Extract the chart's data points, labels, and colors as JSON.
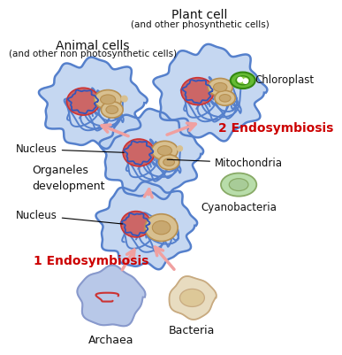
{
  "bg_color": "#ffffff",
  "cell_blue_fill": "#c0d4f0",
  "cell_blue_edge": "#5580cc",
  "nucleus_red_fill": "#cc6666",
  "nucleus_red_edge": "#cc3333",
  "nucleus_blue_outline": "#3355bb",
  "mito_tan_fill": "#d8c090",
  "mito_tan_edge": "#b89050",
  "mito_inner": "#c8a870",
  "archaea_fill": "#b8c8e8",
  "archaea_edge": "#8899cc",
  "bacteria_fill": "#e8dcc0",
  "bacteria_edge": "#c8aa80",
  "cyano_fill": "#b8ddaa",
  "cyano_edge": "#88aa66",
  "chloroplast_fill": "#66bb33",
  "chloroplast_edge": "#338811",
  "arrow_color": "#f0a0a0",
  "label_color": "#111111",
  "red_label": "#cc0000",
  "title_animal": "Animal cells",
  "subtitle_animal": "(and other non photosynthetic cells)",
  "title_plant": "Plant cell",
  "subtitle_plant": "(and other phosynthetic cells)",
  "label_chloroplast": "Chloroplast",
  "label_endosym2": "2 Endosymbiosis",
  "label_nucleus_mid": "Nucleus",
  "label_nucleus_low": "Nucleus",
  "label_organeles": "Organeles\ndevelopment",
  "label_cyano": "Cyanobacteria",
  "label_mito": "Mitochondria",
  "label_endosym1": "1 Endosymbiosis",
  "label_archaea": "Archaea",
  "label_bacteria": "Bacteria"
}
